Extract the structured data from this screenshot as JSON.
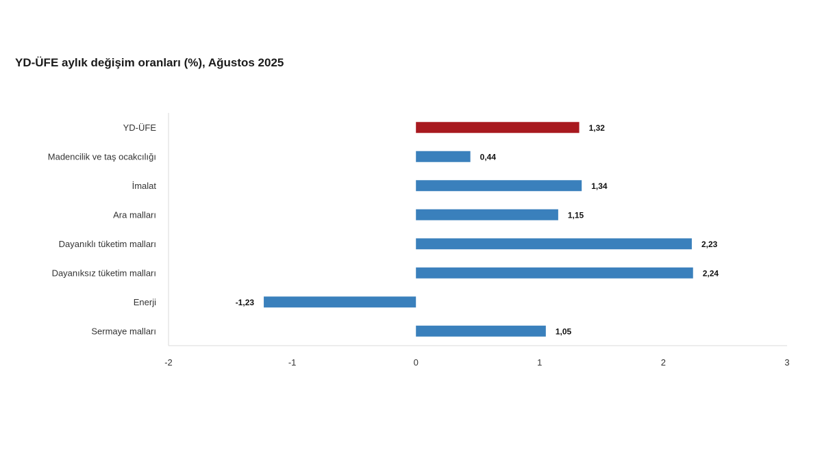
{
  "chart_data": {
    "type": "bar",
    "orientation": "horizontal",
    "title": "YD-ÜFE aylık değişim oranları (%), Ağustos 2025",
    "xlabel": "",
    "ylabel": "",
    "categories": [
      "YD-ÜFE",
      "Madencilik ve taş ocakcılığı",
      "İmalat",
      "Ara malları",
      "Dayanıklı tüketim malları",
      "Dayanıksız tüketim malları",
      "Enerji",
      "Sermaye malları"
    ],
    "values": [
      1.32,
      0.44,
      1.34,
      1.15,
      2.23,
      2.24,
      -1.23,
      1.05
    ],
    "value_labels": [
      "1,32",
      "0,44",
      "1,34",
      "1,15",
      "2,23",
      "2,24",
      "-1,23",
      "1,05"
    ],
    "bar_colors": [
      "#a8191f",
      "#3a80bc",
      "#3a80bc",
      "#3a80bc",
      "#3a80bc",
      "#3a80bc",
      "#3a80bc",
      "#3a80bc"
    ],
    "xlim": [
      -2,
      3
    ],
    "xticks": [
      -2,
      -1,
      0,
      1,
      2,
      3
    ],
    "xtick_labels": [
      "-2",
      "-1",
      "0",
      "1",
      "2",
      "3"
    ],
    "grid": false,
    "legend": "none"
  }
}
